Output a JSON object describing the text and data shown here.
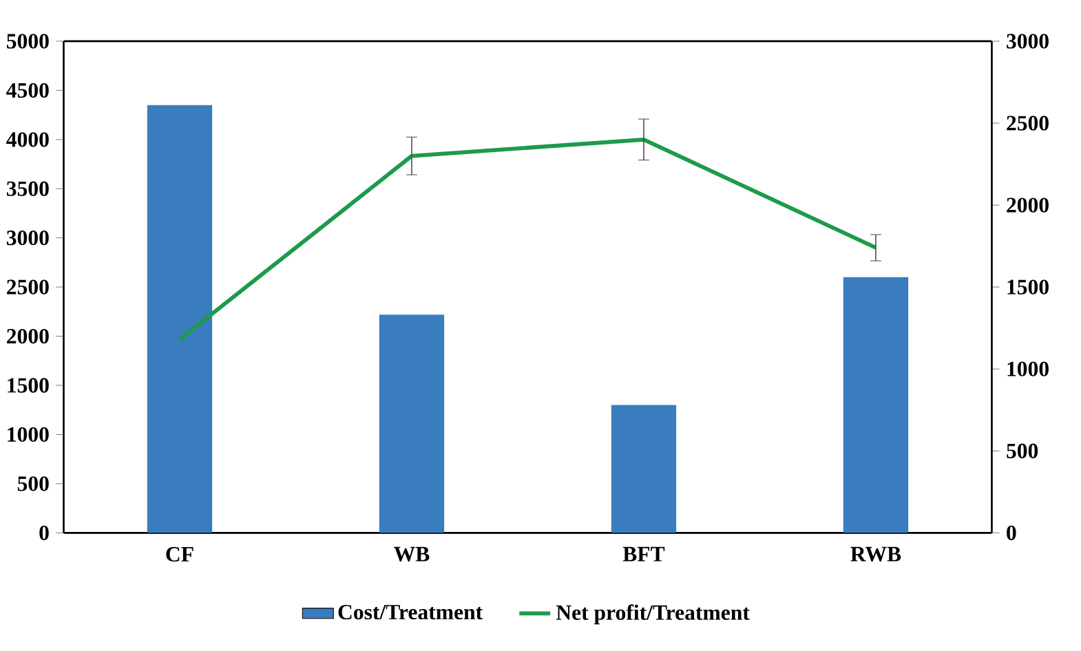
{
  "chart_data": {
    "type": "bar",
    "categories": [
      "CF",
      "WB",
      "BFT",
      "RWB"
    ],
    "series": [
      {
        "name": "Cost/Treatment",
        "color": "#3a7dbf",
        "values": [
          4350,
          2220,
          1300,
          2600
        ]
      },
      {
        "name": "Net profit/Treatment",
        "type": "line",
        "axis": "y2",
        "color": "#1e9a4c",
        "values": [
          1180,
          2300,
          2400,
          1740
        ],
        "errors": [
          null,
          115,
          125,
          80
        ]
      }
    ],
    "ylim": [
      0,
      5000
    ],
    "yticks": [
      0,
      500,
      1000,
      1500,
      2000,
      2500,
      3000,
      3500,
      4000,
      4500,
      5000
    ],
    "y2lim": [
      0,
      3000
    ],
    "y2ticks": [
      0,
      500,
      1000,
      1500,
      2000,
      2500,
      3000
    ],
    "legend": "bottom",
    "grid": false,
    "marker": "none"
  }
}
